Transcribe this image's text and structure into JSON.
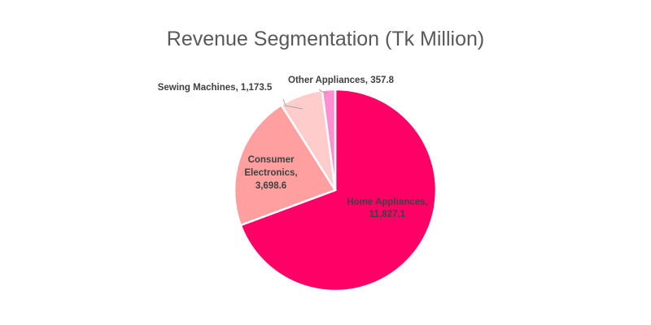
{
  "chart_data": {
    "type": "pie",
    "title": "Revenue Segmentation (Tk Million)",
    "slices": [
      {
        "name": "Home Appliances",
        "value": 11827.1,
        "label": "Home Appliances, 11,827.1",
        "lines": [
          "Home Appliances,",
          "11,827.1"
        ],
        "color": "#ff0066"
      },
      {
        "name": "Consumer Electronics",
        "value": 3698.6,
        "label": "Consumer Electronics, 3,698.6",
        "lines": [
          "Consumer",
          "Electronics,",
          "3,698.6"
        ],
        "color": "#ff9f9f"
      },
      {
        "name": "Sewing Machines",
        "value": 1173.5,
        "label": "Sewing Machines, 1,173.5",
        "lines": [
          "Sewing Machines,  1,173.5"
        ],
        "color": "#ffcccc"
      },
      {
        "name": "Other Appliances",
        "value": 357.8,
        "label": "Other Appliances, 357.8",
        "lines": [
          "Other Appliances,  357.8"
        ],
        "color": "#ff8fd0"
      }
    ]
  }
}
